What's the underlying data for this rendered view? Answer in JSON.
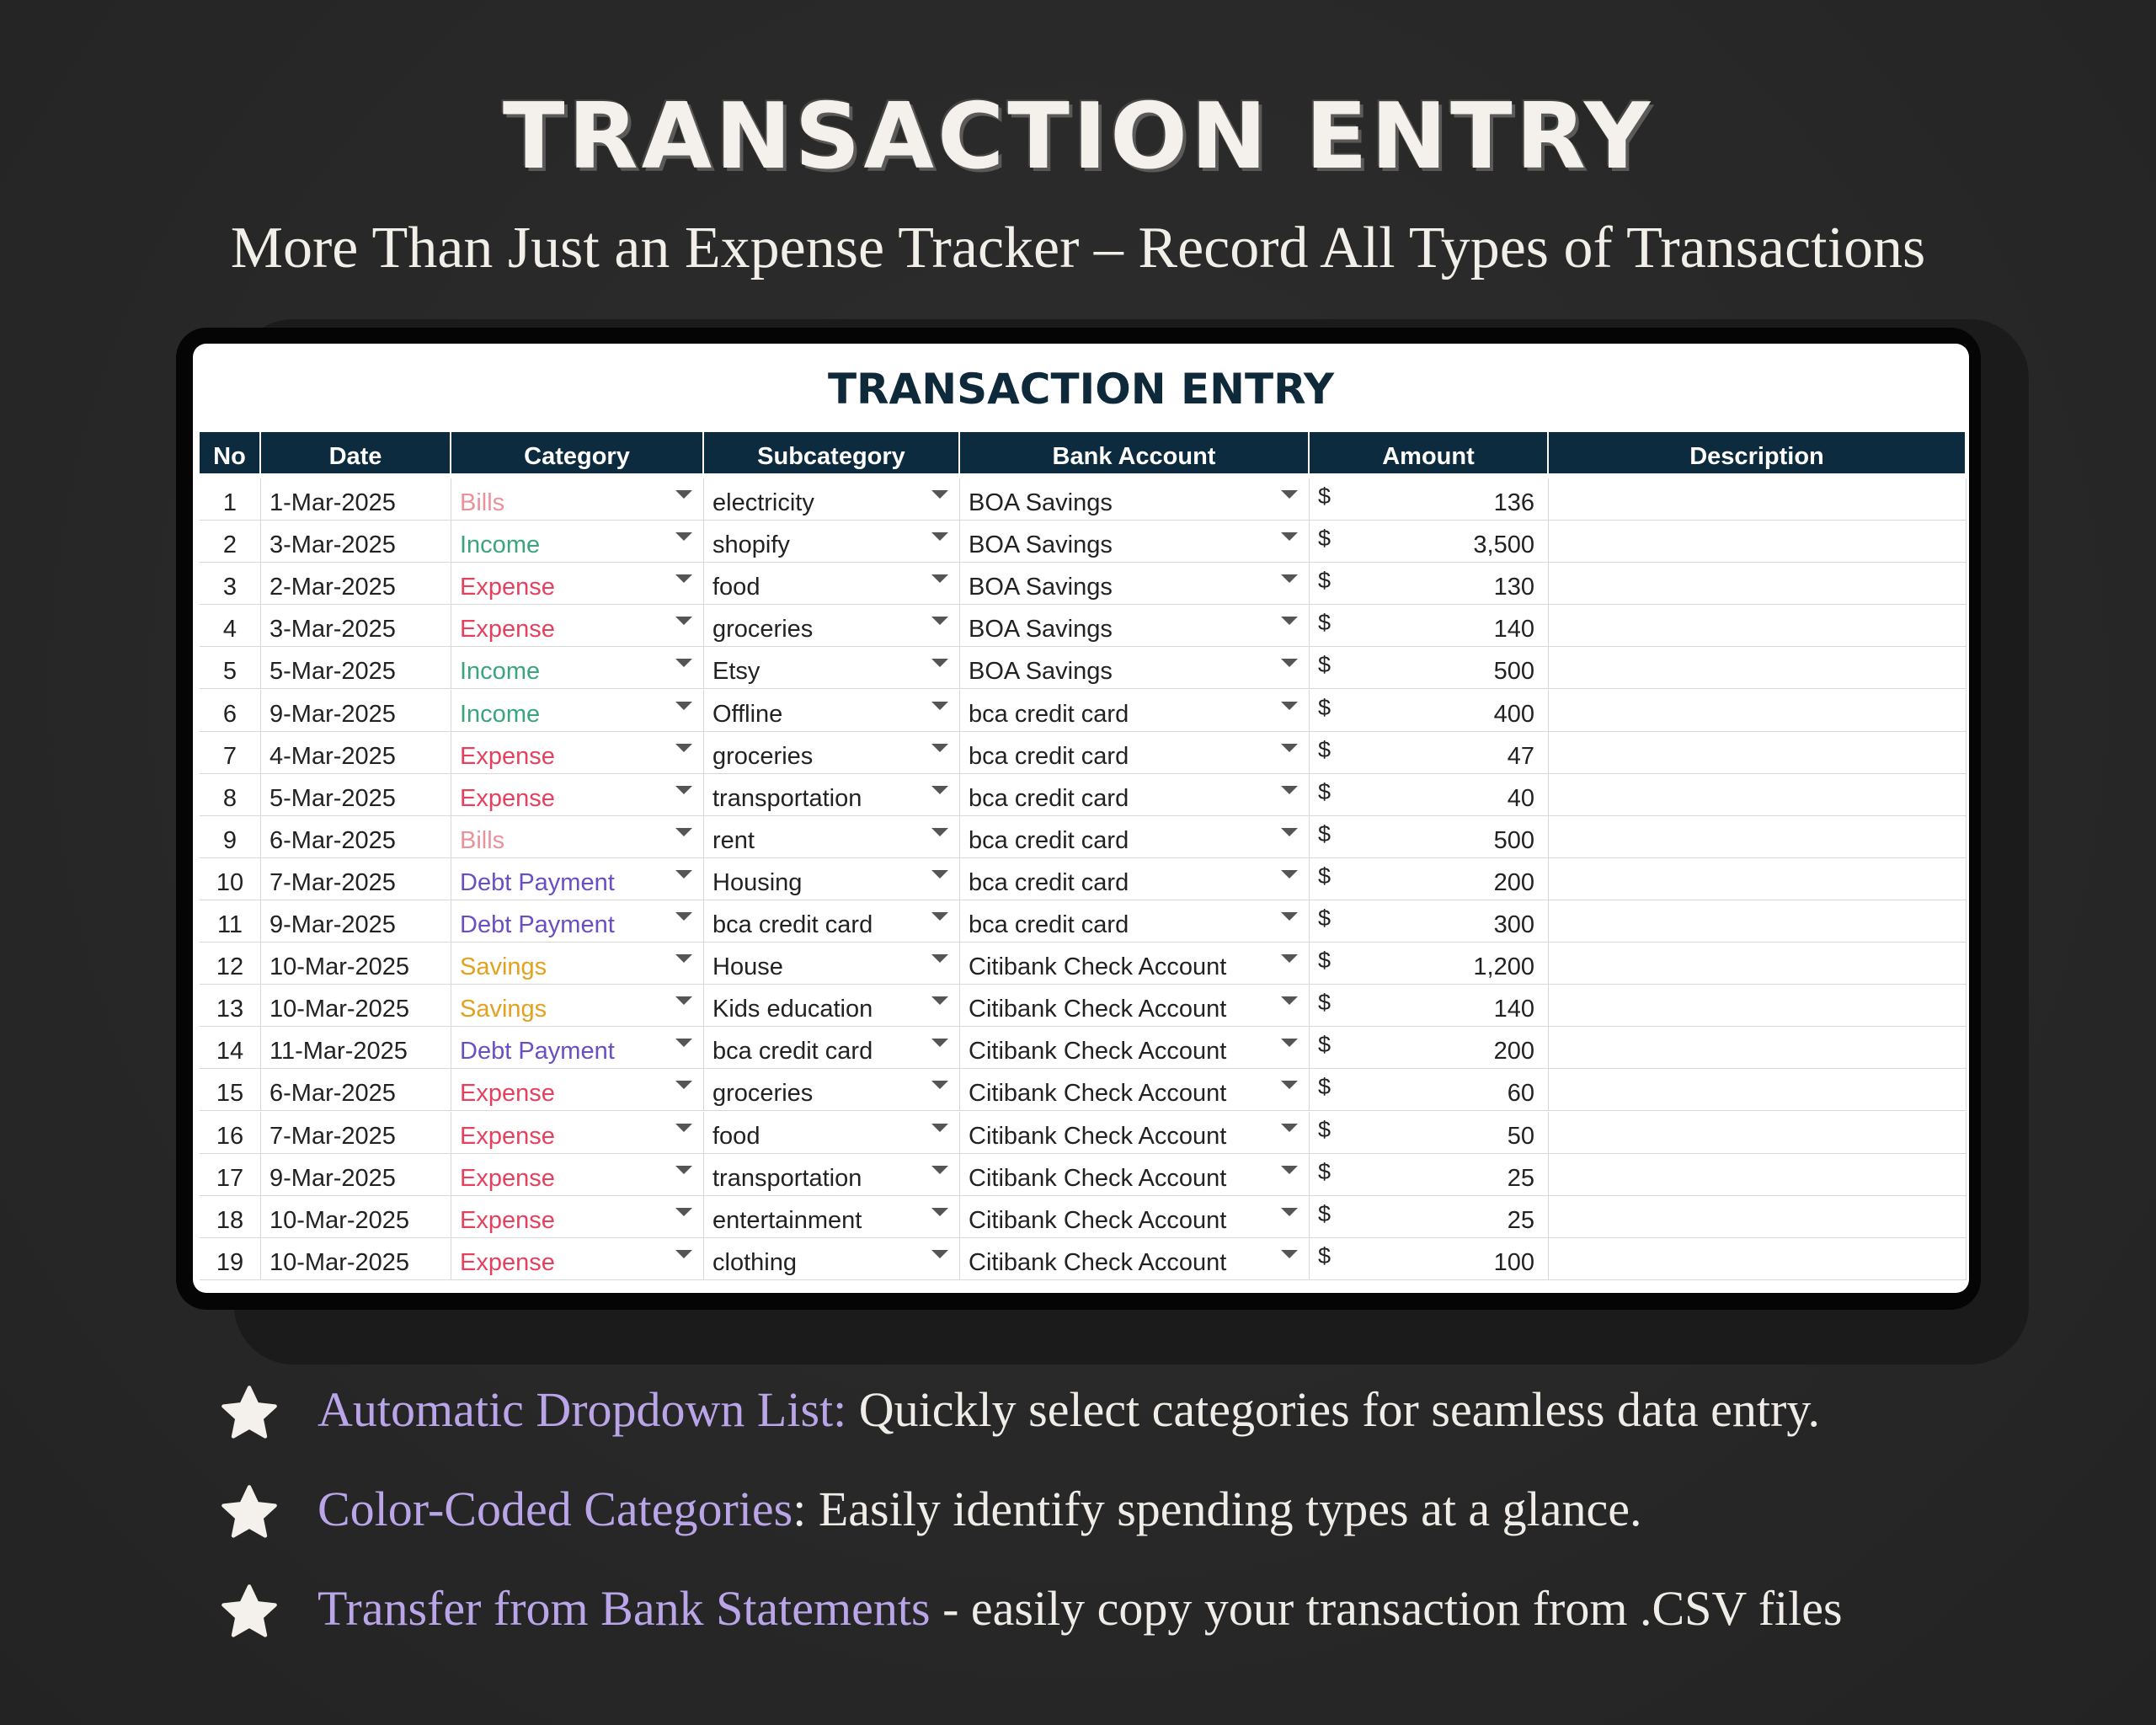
{
  "header": {
    "title": "TRANSACTION ENTRY",
    "subtitle": "More Than Just an Expense Tracker – Record All Types of Transactions"
  },
  "sheet": {
    "title": "TRANSACTION ENTRY",
    "columns": [
      "No",
      "Date",
      "Category",
      "Subcategory",
      "Bank Account",
      "Amount",
      "Description"
    ],
    "currency_symbol": "$",
    "category_colors": {
      "Bills": "#e9929c",
      "Income": "#3aa57c",
      "Expense": "#e5415e",
      "Debt Payment": "#6b4ec2",
      "Savings": "#e2a21f"
    },
    "rows": [
      [
        "1",
        "1-Mar-2025",
        "Bills",
        "electricity",
        "BOA Savings",
        "136"
      ],
      [
        "2",
        "3-Mar-2025",
        "Income",
        "shopify",
        "BOA Savings",
        "3,500"
      ],
      [
        "3",
        "2-Mar-2025",
        "Expense",
        "food",
        "BOA Savings",
        "130"
      ],
      [
        "4",
        "3-Mar-2025",
        "Expense",
        "groceries",
        "BOA Savings",
        "140"
      ],
      [
        "5",
        "5-Mar-2025",
        "Income",
        "Etsy",
        "BOA Savings",
        "500"
      ],
      [
        "6",
        "9-Mar-2025",
        "Income",
        "Offline",
        "bca credit card",
        "400"
      ],
      [
        "7",
        "4-Mar-2025",
        "Expense",
        "groceries",
        "bca credit card",
        "47"
      ],
      [
        "8",
        "5-Mar-2025",
        "Expense",
        "transportation",
        "bca credit card",
        "40"
      ],
      [
        "9",
        "6-Mar-2025",
        "Bills",
        "rent",
        "bca credit card",
        "500"
      ],
      [
        "10",
        "7-Mar-2025",
        "Debt Payment",
        "Housing",
        "bca credit card",
        "200"
      ],
      [
        "11",
        "9-Mar-2025",
        "Debt Payment",
        "bca credit card",
        "bca credit card",
        "300"
      ],
      [
        "12",
        "10-Mar-2025",
        "Savings",
        "House",
        "Citibank Check Account",
        "1,200"
      ],
      [
        "13",
        "10-Mar-2025",
        "Savings",
        "Kids education",
        "Citibank Check Account",
        "140"
      ],
      [
        "14",
        "11-Mar-2025",
        "Debt Payment",
        "bca credit card",
        "Citibank Check Account",
        "200"
      ],
      [
        "15",
        "6-Mar-2025",
        "Expense",
        "groceries",
        "Citibank Check Account",
        "60"
      ],
      [
        "16",
        "7-Mar-2025",
        "Expense",
        "food",
        "Citibank Check Account",
        "50"
      ],
      [
        "17",
        "9-Mar-2025",
        "Expense",
        "transportation",
        "Citibank Check Account",
        "25"
      ],
      [
        "18",
        "10-Mar-2025",
        "Expense",
        "entertainment",
        "Citibank Check Account",
        "25"
      ],
      [
        "19",
        "10-Mar-2025",
        "Expense",
        "clothing",
        "Citibank Check Account",
        "100"
      ]
    ]
  },
  "features": [
    {
      "highlight": "Automatic Dropdown List:",
      "text": " Quickly select categories for seamless data entry."
    },
    {
      "highlight": "Color-Coded Categories",
      "text": ": Easily identify spending types at a glance."
    },
    {
      "highlight": "Transfer from Bank Statements",
      "text": " - easily copy your transaction from .CSV files"
    }
  ]
}
